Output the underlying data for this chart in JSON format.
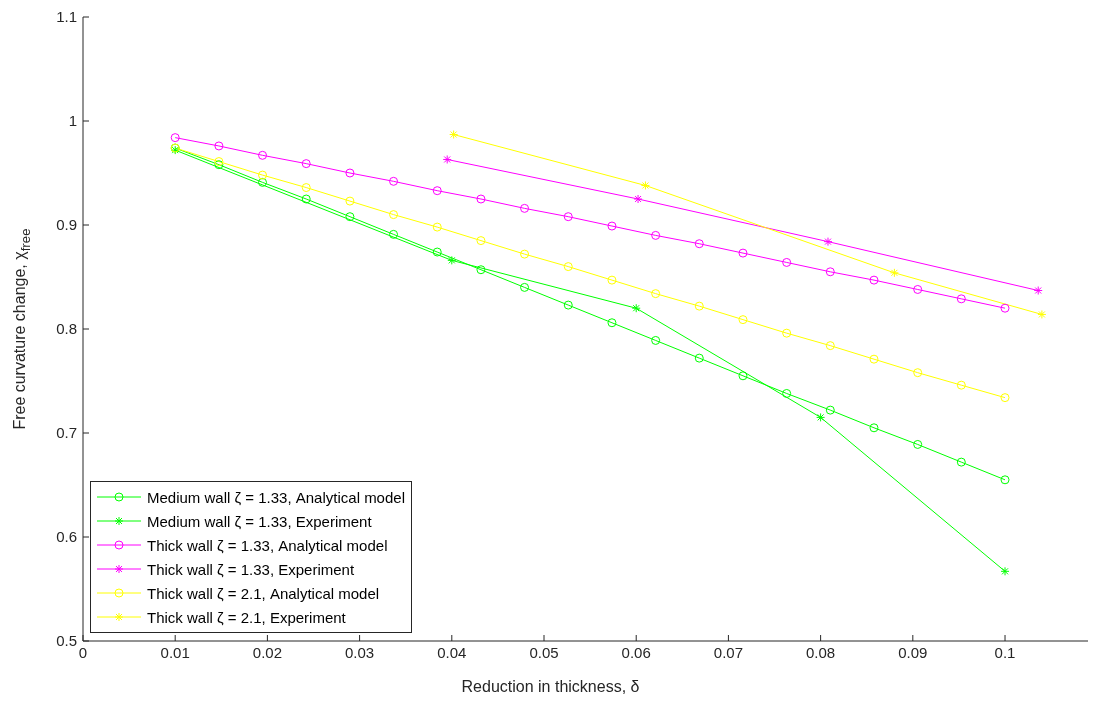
{
  "chart_data": {
    "type": "line",
    "xlabel": "Reduction in thickness, δ",
    "ylabel": "Free curvature change, χ$_{free}$",
    "xlim": [
      0,
      0.109
    ],
    "ylim": [
      0.5,
      1.1
    ],
    "xticks": [
      0,
      0.01,
      0.02,
      0.03,
      0.04,
      0.05,
      0.06,
      0.07,
      0.08,
      0.09,
      0.1
    ],
    "yticks": [
      0.5,
      0.6,
      0.7,
      0.8,
      0.9,
      {
        "value": 1,
        "label": "1"
      },
      1.1
    ],
    "grid": false,
    "legend": "bottom left",
    "line_style": "solid",
    "series": [
      {
        "name": "Medium wall ζ = 1.33, Analytical model",
        "color": "#00ff00",
        "marker": "circle",
        "x": [
          0.01,
          0.01474,
          0.01947,
          0.02421,
          0.02895,
          0.03368,
          0.03842,
          0.04316,
          0.04789,
          0.05263,
          0.05737,
          0.06211,
          0.06684,
          0.07158,
          0.07632,
          0.08105,
          0.08579,
          0.09053,
          0.09526,
          0.1
        ],
        "values": [
          0.974,
          0.958,
          0.941,
          0.925,
          0.908,
          0.891,
          0.874,
          0.857,
          0.84,
          0.823,
          0.806,
          0.789,
          0.772,
          0.755,
          0.738,
          0.722,
          0.705,
          0.689,
          0.672,
          0.655
        ]
      },
      {
        "name": "Medium wall ζ = 1.33, Experiment",
        "color": "#00ff00",
        "marker": "cross",
        "x": [
          0.01,
          0.04,
          0.06,
          0.08,
          0.1
        ],
        "values": [
          0.972,
          0.866,
          0.82,
          0.715,
          0.567
        ]
      },
      {
        "name": "Thick wall ζ = 1.33, Analytical model",
        "color": "#ff00ff",
        "marker": "circle",
        "x": [
          0.01,
          0.01474,
          0.01947,
          0.02421,
          0.02895,
          0.03368,
          0.03842,
          0.04316,
          0.04789,
          0.05263,
          0.05737,
          0.06211,
          0.06684,
          0.07158,
          0.07632,
          0.08105,
          0.08579,
          0.09053,
          0.09526,
          0.1
        ],
        "values": [
          0.984,
          0.976,
          0.967,
          0.959,
          0.95,
          0.942,
          0.933,
          0.925,
          0.916,
          0.908,
          0.899,
          0.89,
          0.882,
          0.873,
          0.864,
          0.855,
          0.847,
          0.838,
          0.829,
          0.82
        ]
      },
      {
        "name": "Thick wall ζ = 1.33, Experiment",
        "color": "#ff00ff",
        "marker": "cross",
        "x": [
          0.0395,
          0.0602,
          0.0808,
          0.1036
        ],
        "values": [
          0.963,
          0.925,
          0.884,
          0.837
        ]
      },
      {
        "name": "Thick wall ζ = 2.1, Analytical model",
        "color": "#ffff00",
        "marker": "circle",
        "x": [
          0.01,
          0.01474,
          0.01947,
          0.02421,
          0.02895,
          0.03368,
          0.03842,
          0.04316,
          0.04789,
          0.05263,
          0.05737,
          0.06211,
          0.06684,
          0.07158,
          0.07632,
          0.08105,
          0.08579,
          0.09053,
          0.09526,
          0.1
        ],
        "values": [
          0.974,
          0.961,
          0.948,
          0.936,
          0.923,
          0.91,
          0.898,
          0.885,
          0.872,
          0.86,
          0.847,
          0.834,
          0.822,
          0.809,
          0.796,
          0.784,
          0.771,
          0.758,
          0.746,
          0.734
        ]
      },
      {
        "name": "Thick wall ζ = 2.1, Experiment",
        "color": "#ffff00",
        "marker": "cross",
        "x": [
          0.0402,
          0.061,
          0.088,
          0.104
        ],
        "values": [
          0.987,
          0.938,
          0.854,
          0.814
        ]
      }
    ]
  }
}
